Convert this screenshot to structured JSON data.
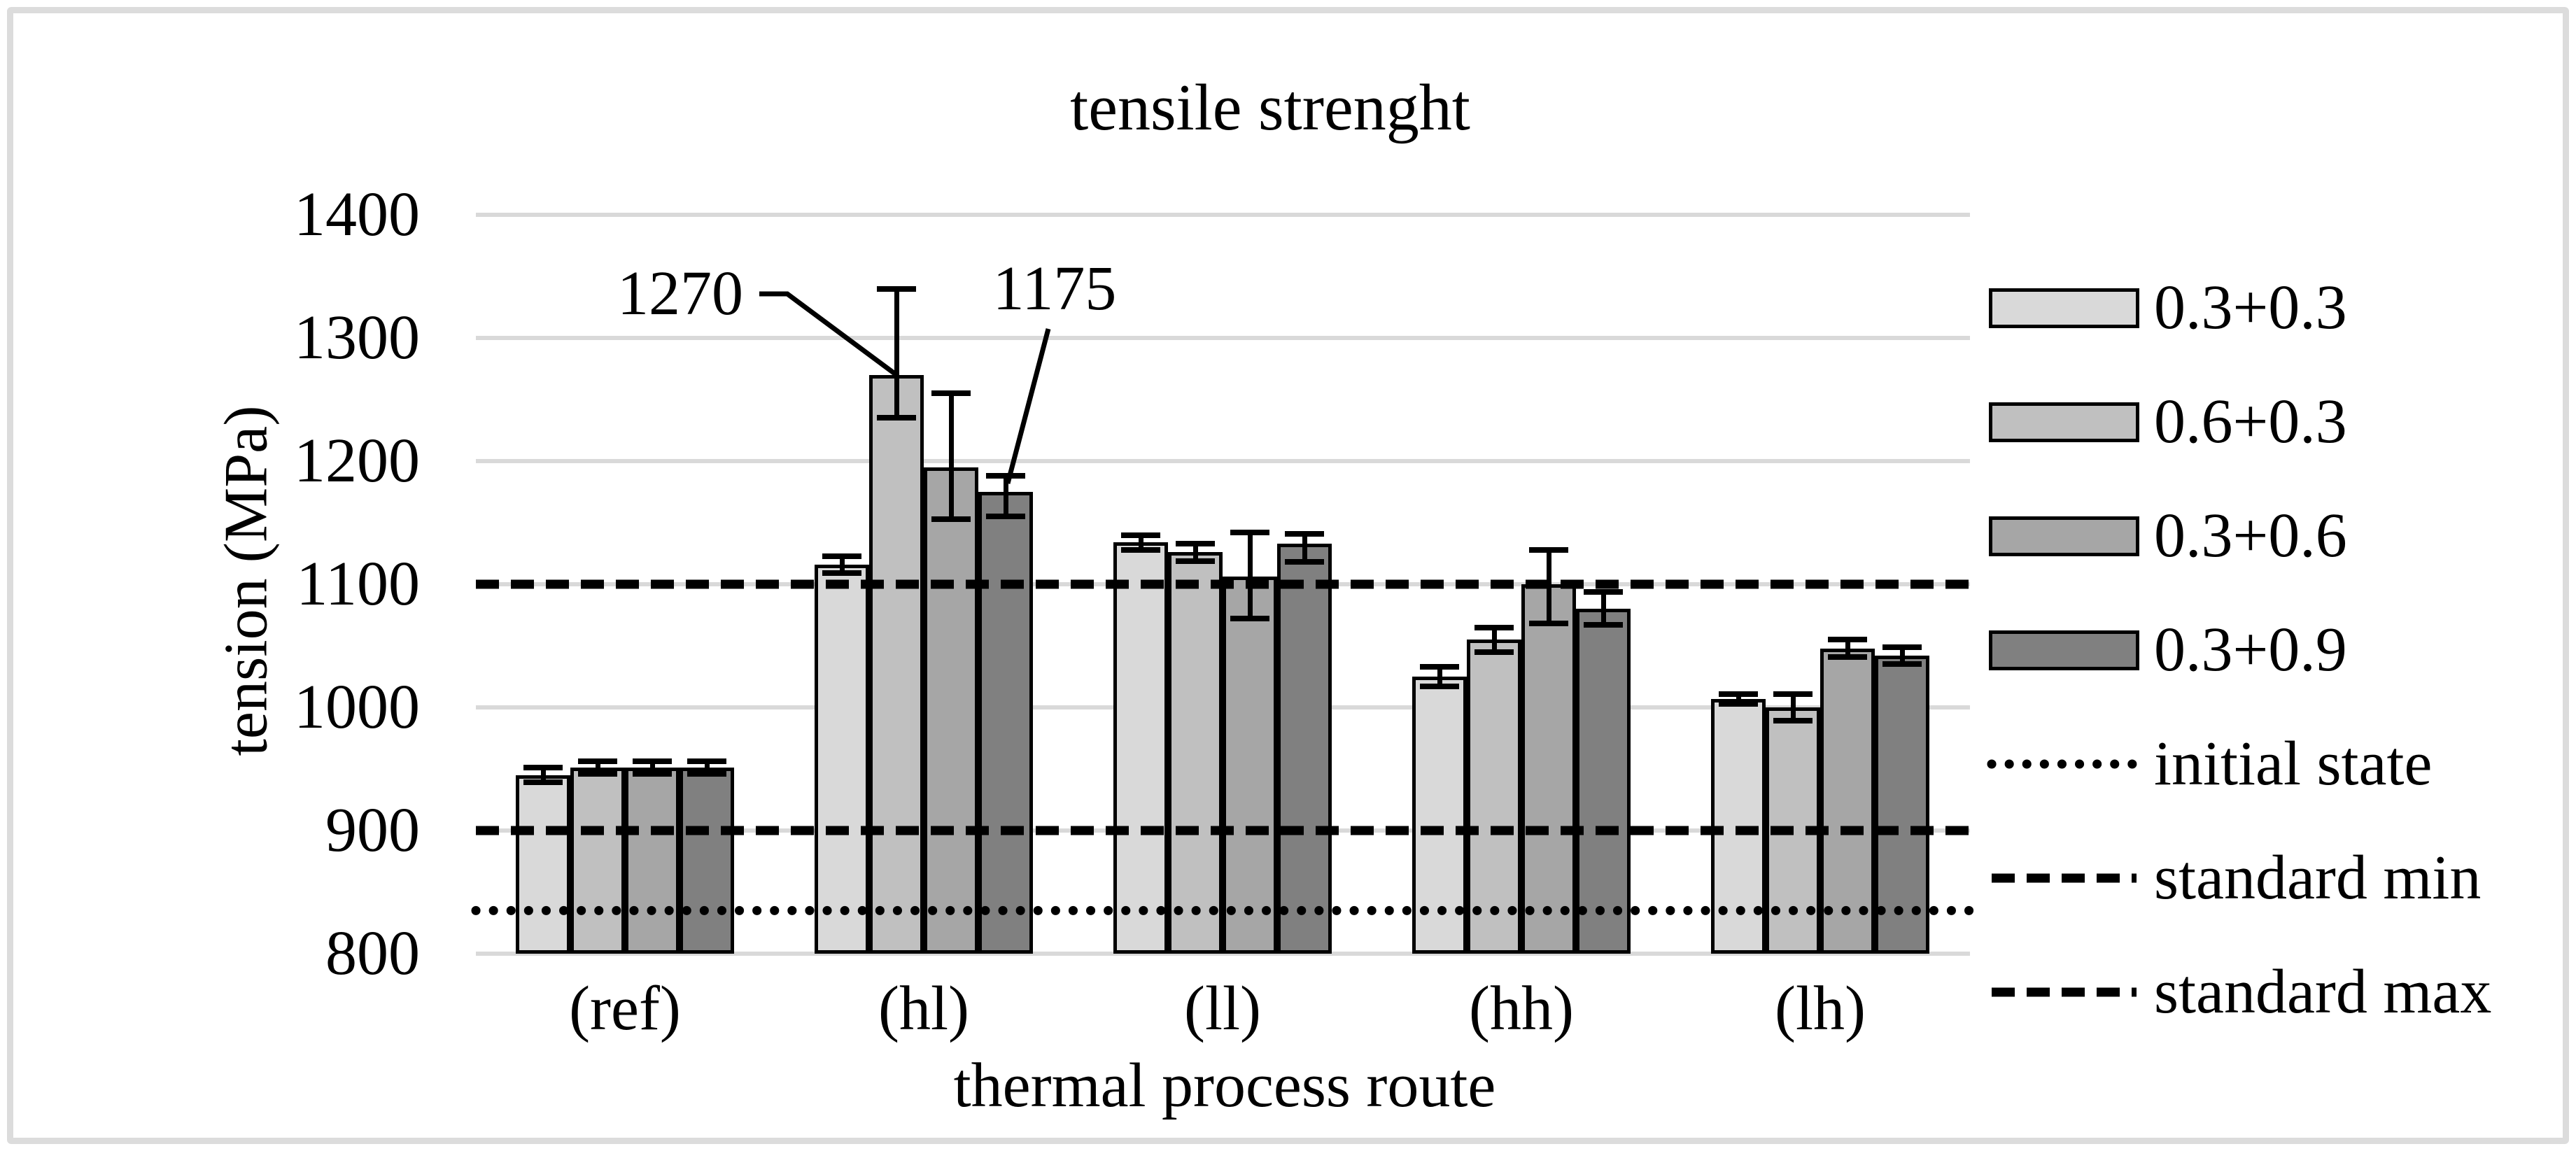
{
  "chart_data": {
    "type": "bar",
    "title": "tensile strenght",
    "xlabel": "thermal process route",
    "ylabel": "tension  (MPa)",
    "ylim": [
      800,
      1400
    ],
    "yticks": [
      1400,
      1300,
      1200,
      1100,
      1000,
      900,
      800
    ],
    "categories": [
      "(ref)",
      "(hl)",
      "(ll)",
      "(hh)",
      "(lh)"
    ],
    "grid": true,
    "legend_position": "right",
    "series": [
      {
        "name": "0.3+0.3",
        "color": "#d9d9d9",
        "values": [
          945,
          1116,
          1134,
          1025,
          1007
        ],
        "err_plus": [
          6,
          7,
          6,
          8,
          4
        ],
        "err_minus": [
          6,
          7,
          6,
          8,
          4
        ]
      },
      {
        "name": "0.6+0.3",
        "color": "#c0c0c0",
        "values": [
          951,
          1270,
          1126,
          1055,
          1000
        ],
        "err_plus": [
          5,
          70,
          7,
          10,
          11
        ],
        "err_minus": [
          5,
          35,
          7,
          10,
          11
        ]
      },
      {
        "name": "0.3+0.6",
        "color": "#a6a6a6",
        "values": [
          951,
          1195,
          1106,
          1100,
          1048
        ],
        "err_plus": [
          5,
          60,
          36,
          28,
          7
        ],
        "err_minus": [
          5,
          42,
          34,
          32,
          7
        ]
      },
      {
        "name": "0.3+0.9",
        "color": "#808080",
        "values": [
          951,
          1175,
          1133,
          1080,
          1042
        ],
        "err_plus": [
          5,
          13,
          8,
          14,
          7
        ],
        "err_minus": [
          5,
          20,
          15,
          13,
          7
        ]
      }
    ],
    "reference_lines": [
      {
        "name": "initial state",
        "value": 835,
        "style": "dotted",
        "color": "#000000"
      },
      {
        "name": "standard min",
        "value": 900,
        "style": "dashed",
        "color": "#000000"
      },
      {
        "name": "standard max",
        "value": 1100,
        "style": "dashed",
        "color": "#000000"
      }
    ],
    "annotations": [
      {
        "text": "1270",
        "series": 1,
        "category": 1
      },
      {
        "text": "1175",
        "series": 3,
        "category": 1
      }
    ]
  }
}
